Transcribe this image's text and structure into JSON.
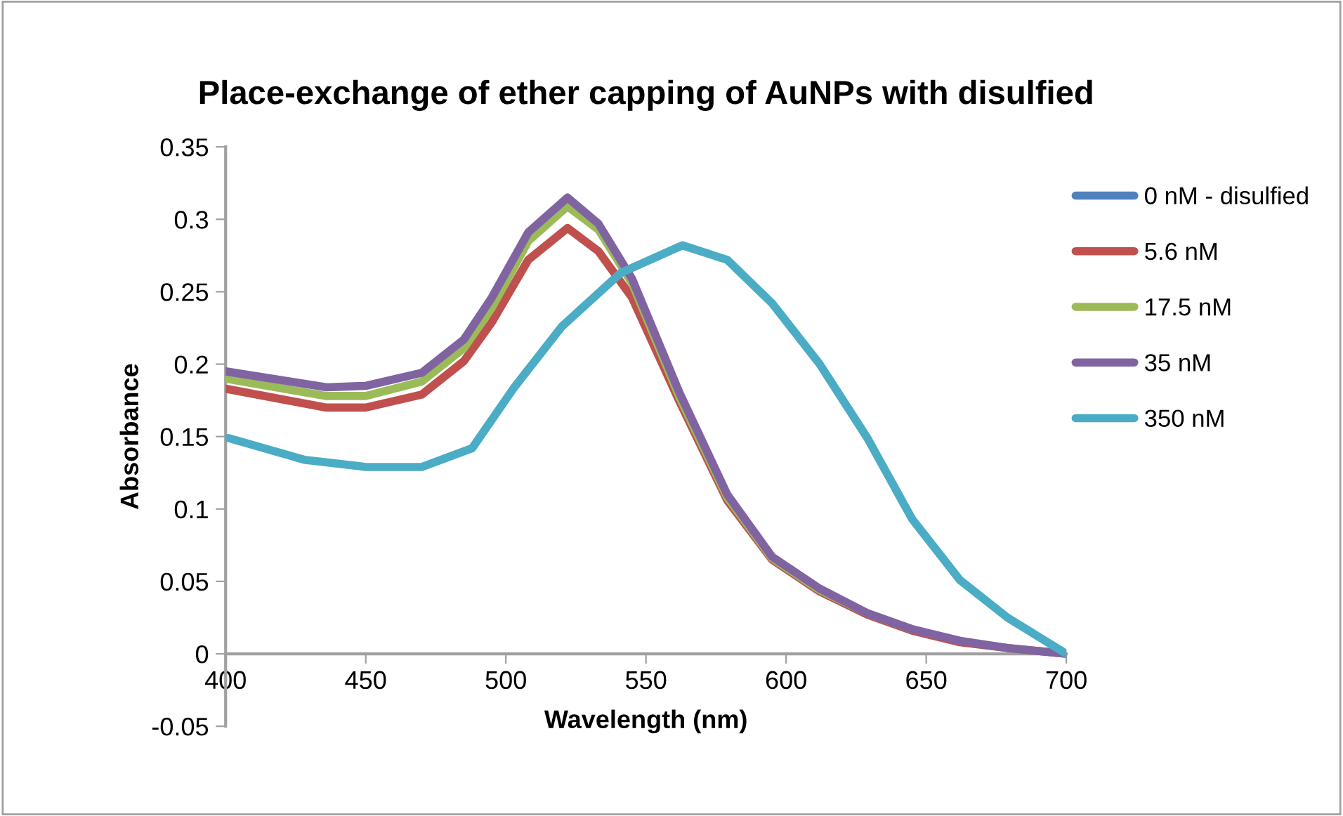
{
  "chart_data": {
    "type": "line",
    "title": "Place-exchange of ether capping of AuNPs with disulfied",
    "xlabel": "Wavelength (nm)",
    "ylabel": "Absorbance",
    "x": [
      400,
      436,
      450,
      470,
      485,
      495,
      508,
      522,
      533,
      545,
      562,
      579,
      595,
      612,
      629,
      645,
      662,
      679,
      700
    ],
    "series": [
      {
        "name": "0 nM - disulfied",
        "color": "#4f81bd",
        "values": [
          null,
          null,
          null,
          null,
          null,
          null,
          null,
          null,
          null,
          null,
          null,
          null,
          null,
          null,
          null,
          null,
          null,
          null,
          null
        ]
      },
      {
        "name": "5.6 nM",
        "color": "#c0504d",
        "values": [
          0.183,
          0.17,
          0.17,
          0.179,
          0.202,
          0.229,
          0.272,
          0.294,
          0.278,
          0.246,
          0.174,
          0.106,
          0.065,
          0.043,
          0.027,
          0.016,
          0.008,
          0.004,
          0.0
        ]
      },
      {
        "name": "17.5 nM",
        "color": "#9bbb59",
        "values": [
          0.19,
          0.178,
          0.178,
          0.188,
          0.211,
          0.239,
          0.285,
          0.309,
          0.293,
          0.256,
          0.177,
          0.108,
          0.066,
          0.044,
          0.028,
          0.017,
          null,
          null,
          null
        ]
      },
      {
        "name": "35 nM",
        "color": "#8064a2",
        "values": [
          0.195,
          0.184,
          0.185,
          0.194,
          0.217,
          0.246,
          0.291,
          0.315,
          0.297,
          0.259,
          0.18,
          0.11,
          0.067,
          0.045,
          0.028,
          0.017,
          0.009,
          0.004,
          0.0
        ]
      },
      {
        "name": "350 nM",
        "color": "#4bacc6",
        "x": [
          401,
          428,
          450,
          470,
          488,
          503,
          520,
          541,
          563,
          579,
          595,
          612,
          629,
          645,
          662,
          679,
          700
        ],
        "values": [
          0.149,
          0.134,
          0.129,
          0.129,
          0.142,
          0.184,
          0.226,
          0.263,
          0.282,
          0.272,
          0.242,
          0.2,
          0.149,
          0.093,
          0.051,
          0.025,
          0.0
        ]
      }
    ],
    "xlim": [
      400,
      700
    ],
    "xticks": [
      400,
      450,
      500,
      550,
      600,
      650,
      700
    ],
    "ylim": [
      -0.05,
      0.35
    ],
    "yticks": [
      {
        "value": -0.05,
        "label": "-0.05"
      },
      {
        "value": 0,
        "label": "0"
      },
      0.05,
      0.1,
      0.15,
      0.2,
      0.25,
      0.3,
      0.35
    ],
    "grid": false,
    "legend": "right",
    "marker": "none",
    "line_style": "solid"
  }
}
